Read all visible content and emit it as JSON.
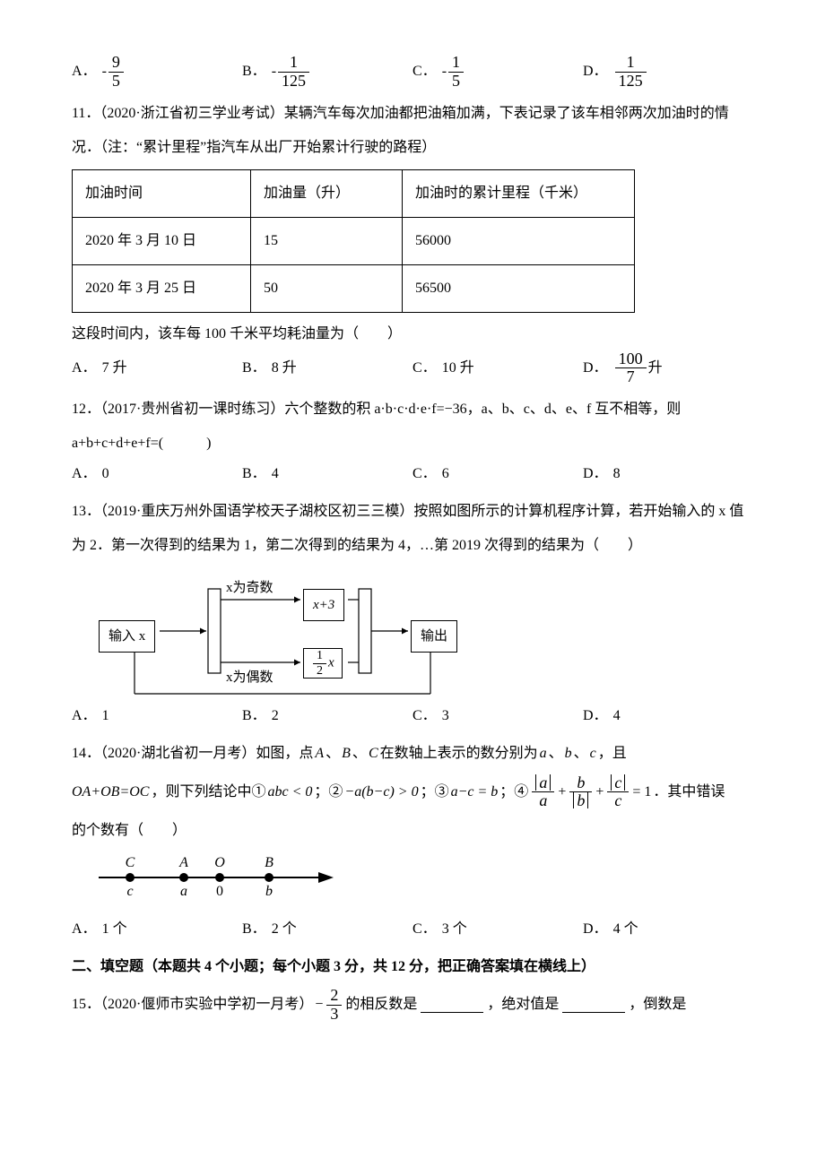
{
  "q10": {
    "opts": {
      "A": {
        "label": "A．",
        "neg": true,
        "num": "9",
        "den": "5"
      },
      "B": {
        "label": "B．",
        "neg": true,
        "num": "1",
        "den": "125"
      },
      "C": {
        "label": "C．",
        "neg": true,
        "num": "1",
        "den": "5"
      },
      "D": {
        "label": "D．",
        "neg": false,
        "num": "1",
        "den": "125"
      }
    }
  },
  "q11": {
    "stem1": "11．（2020·浙江省初三学业考试）某辆汽车每次加油都把油箱加满，下表记录了该车相邻两次加油时的情",
    "stem2": "况．（注：“累计里程”指汽车从出厂开始累计行驶的路程）",
    "table": {
      "headers": [
        "加油时间",
        "加油量（升）",
        "加油时的累计里程（千米）"
      ],
      "rows": [
        [
          "2020 年 3 月 10 日",
          "15",
          "56000"
        ],
        [
          "2020 年 3 月 25 日",
          "50",
          "56500"
        ]
      ],
      "colwidths": [
        "170px",
        "140px",
        "230px"
      ]
    },
    "tail": "这段时间内，该车每 100 千米平均耗油量为（　　）",
    "opts": {
      "A": {
        "label": "A．",
        "text": "7 升"
      },
      "B": {
        "label": "B．",
        "text": "8 升"
      },
      "C": {
        "label": "C．",
        "text": "10 升"
      },
      "D": {
        "label": "D．",
        "num": "100",
        "den": "7",
        "suffix": "升"
      }
    }
  },
  "q12": {
    "stem1": "12．（2017·贵州省初一课时练习）六个整数的积 a·b·c·d·e·f=−36，a、b、c、d、e、f 互不相等，则",
    "stem2": "a+b+c+d+e+f=(　　　)",
    "opts": {
      "A": {
        "label": "A．",
        "text": "0"
      },
      "B": {
        "label": "B．",
        "text": "4"
      },
      "C": {
        "label": "C．",
        "text": "6"
      },
      "D": {
        "label": "D．",
        "text": "8"
      }
    }
  },
  "q13": {
    "stem1": "13．（2019·重庆万州外国语学校天子湖校区初三三模）按照如图所示的计算机程序计算，若开始输入的 x 值",
    "stem2": "为 2．第一次得到的结果为 1，第二次得到的结果为 4，…第 2019 次得到的结果为（　　）",
    "flow": {
      "input": "输入 x",
      "odd": "x为奇数",
      "even": "x为偶数",
      "top": "x+3",
      "bot_num": "1",
      "bot_den": "2",
      "bot_suffix": "x",
      "output": "输出"
    },
    "opts": {
      "A": {
        "label": "A．",
        "text": "1"
      },
      "B": {
        "label": "B．",
        "text": "2"
      },
      "C": {
        "label": "C．",
        "text": "3"
      },
      "D": {
        "label": "D．",
        "text": "4"
      }
    }
  },
  "q14": {
    "stem_pre": "14．（2020·湖北省初一月考）如图，点 ",
    "A": "A",
    "B": "B",
    "C": "C",
    "mid": " 在数轴上表示的数分别为 ",
    "a": "a",
    "b": "b",
    "c": "c",
    "comma": "、",
    "and": " ，且",
    "line2_pre": "OA+OB=OC",
    "line2_mid": "，则下列结论中① ",
    "abc": "abc < 0",
    "semi": "；② ",
    "term2": "−a(b−c) > 0",
    "semi2": "；③ ",
    "term3": "a−c = b",
    "semi3": "；④ ",
    "eq_rhs": " = 1",
    "tail": "．其中错误",
    "tail2": "的个数有（　　）",
    "nl_labels": {
      "C": "C",
      "A": "A",
      "O": "O",
      "B": "B",
      "c": "c",
      "a": "a",
      "zero": "0",
      "b": "b"
    },
    "opts": {
      "A": {
        "label": "A．",
        "text": "1 个"
      },
      "B": {
        "label": "B．",
        "text": "2 个"
      },
      "C": {
        "label": "C．",
        "text": "3 个"
      },
      "D": {
        "label": "D．",
        "text": "4 个"
      }
    }
  },
  "section2": "二、填空题（本题共 4 个小题；每个小题 3 分，共 12 分，把正确答案填在横线上）",
  "q15": {
    "pre": "15．（2020·偃师市实验中学初一月考）",
    "neg": "−",
    "num": "2",
    "den": "3",
    "mid1": " 的相反数是",
    "mid2": "，绝对值是",
    "mid3": "，倒数是"
  }
}
